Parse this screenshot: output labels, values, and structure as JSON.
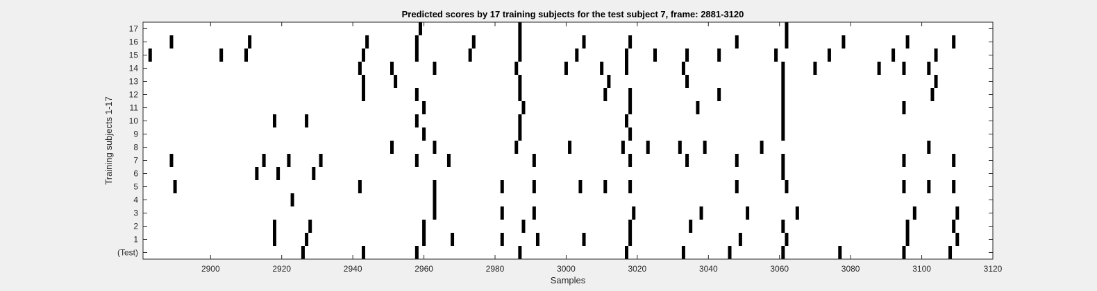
{
  "chart_data": {
    "type": "raster",
    "title": "Predicted scores by 17 training subjects for the test subject 7, frame: 2881-3120",
    "xlabel": "Samples",
    "ylabel": "Training subjects 1-17",
    "xlim": [
      2881,
      3120
    ],
    "x_ticks": [
      2900,
      2920,
      2940,
      2960,
      2980,
      3000,
      3020,
      3040,
      3060,
      3080,
      3100,
      3120
    ],
    "y_tick_labels": [
      "(Test)",
      "1",
      "2",
      "3",
      "4",
      "5",
      "6",
      "7",
      "8",
      "9",
      "10",
      "11",
      "12",
      "13",
      "14",
      "15",
      "16",
      "17"
    ],
    "grid": false,
    "background": "#f0f0f0",
    "axes_color": "#ffffff",
    "mark_color": "#000000",
    "rows": [
      {
        "label": "(Test)",
        "events": [
          2926,
          2943,
          2958,
          2987,
          3017,
          3033,
          3046,
          3061,
          3077,
          3095,
          3108
        ]
      },
      {
        "label": "1",
        "events": [
          2918,
          2927,
          2960,
          2968,
          2982,
          2992,
          3005,
          3018,
          3049,
          3062,
          3096,
          3110
        ]
      },
      {
        "label": "2",
        "events": [
          2918,
          2928,
          2960,
          2988,
          3018,
          3035,
          3061,
          3096,
          3109
        ]
      },
      {
        "label": "3",
        "events": [
          2963,
          2982,
          2991,
          3019,
          3038,
          3051,
          3065,
          3098,
          3110
        ]
      },
      {
        "label": "4",
        "events": [
          2923,
          2963
        ]
      },
      {
        "label": "5",
        "events": [
          2890,
          2942,
          2963,
          2982,
          2991,
          3004,
          3011,
          3018,
          3048,
          3062,
          3095,
          3102,
          3109
        ]
      },
      {
        "label": "6",
        "events": [
          2913,
          2919,
          2929,
          3061
        ]
      },
      {
        "label": "7",
        "events": [
          2889,
          2915,
          2922,
          2931,
          2958,
          2967,
          2991,
          3018,
          3034,
          3048,
          3061,
          3095,
          3109
        ]
      },
      {
        "label": "8",
        "events": [
          2951,
          2963,
          2986,
          3001,
          3016,
          3023,
          3032,
          3039,
          3055,
          3102
        ]
      },
      {
        "label": "9",
        "events": [
          2960,
          2987,
          3018,
          3061
        ]
      },
      {
        "label": "10",
        "events": [
          2918,
          2927,
          2958,
          2987,
          3017,
          3061
        ]
      },
      {
        "label": "11",
        "events": [
          2960,
          2988,
          3018,
          3037,
          3061,
          3095
        ]
      },
      {
        "label": "12",
        "events": [
          2943,
          2958,
          2987,
          3011,
          3018,
          3043,
          3061,
          3103
        ]
      },
      {
        "label": "13",
        "events": [
          2943,
          2952,
          2987,
          3012,
          3034,
          3061,
          3104
        ]
      },
      {
        "label": "14",
        "events": [
          2942,
          2951,
          2963,
          2986,
          3000,
          3010,
          3017,
          3033,
          3061,
          3070,
          3088,
          3095,
          3102
        ]
      },
      {
        "label": "15",
        "events": [
          2883,
          2903,
          2910,
          2943,
          2958,
          2973,
          2987,
          3003,
          3017,
          3025,
          3034,
          3043,
          3059,
          3074,
          3092,
          3104
        ]
      },
      {
        "label": "16",
        "events": [
          2889,
          2911,
          2944,
          2958,
          2974,
          2987,
          3005,
          3018,
          3048,
          3062,
          3078,
          3096,
          3109
        ]
      },
      {
        "label": "17",
        "events": [
          2959,
          2987,
          3062
        ]
      }
    ]
  }
}
